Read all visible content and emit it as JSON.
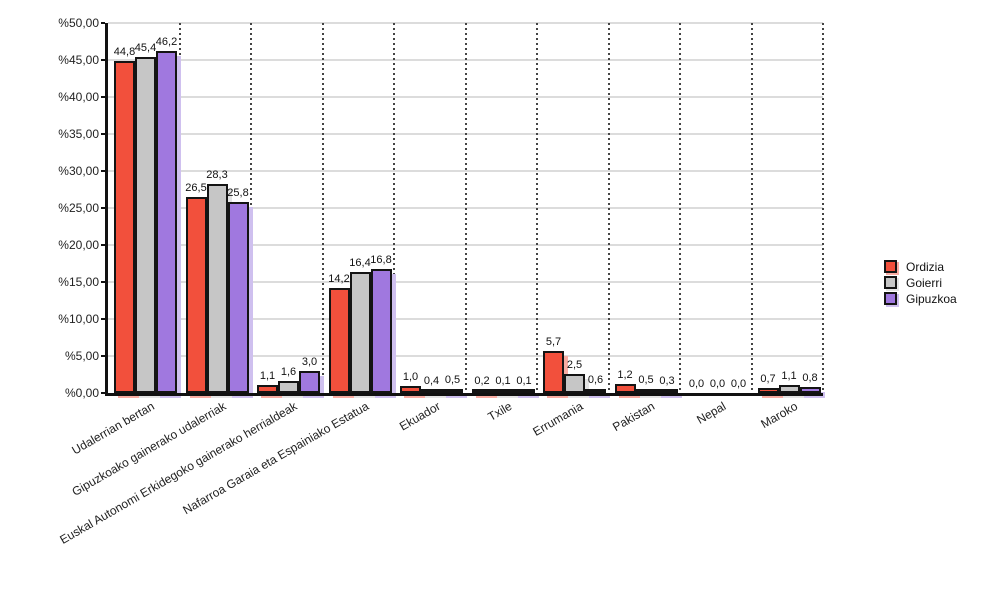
{
  "chart_data": {
    "type": "bar",
    "title": "",
    "xlabel": "",
    "ylabel": "",
    "categories": [
      "Udalerrian bertan",
      "Gipuzkoako gainerako udalerriak",
      "Euskal Autonomi Erkidegoko gainerako herrialdeak",
      "Nafarroa Garaia eta Espainiako Estatua",
      "Ekuador",
      "Txile",
      "Errumania",
      "Pakistan",
      "Nepal",
      "Maroko"
    ],
    "series": [
      {
        "name": "Ordizia",
        "color": "#F2503C",
        "shadow_color": "#F9ACA2",
        "values": [
          44.8,
          26.5,
          1.1,
          14.2,
          1.0,
          0.2,
          5.7,
          1.2,
          0.0,
          0.7
        ],
        "labels": [
          "44,8",
          "26,5",
          "1,1",
          "14,2",
          "1,0",
          "0,2",
          "5,7",
          "1,2",
          "0,0",
          "0,7"
        ]
      },
      {
        "name": "Goierri",
        "color": "#C6C6C6",
        "shadow_color": "#E4E4E4",
        "values": [
          45.4,
          28.3,
          1.6,
          16.4,
          0.4,
          0.1,
          2.5,
          0.5,
          0.0,
          1.1
        ],
        "labels": [
          "45,4",
          "28,3",
          "1,6",
          "16,4",
          "0,4",
          "0,1",
          "2,5",
          "0,5",
          "0,0",
          "1,1"
        ]
      },
      {
        "name": "Gipuzkoa",
        "color": "#A078DF",
        "shadow_color": "#CFC0EF",
        "values": [
          46.2,
          25.8,
          3.0,
          16.8,
          0.5,
          0.1,
          0.6,
          0.3,
          0.0,
          0.8
        ],
        "labels": [
          "46,2",
          "25,8",
          "3,0",
          "16,8",
          "0,5",
          "0,1",
          "0,6",
          "0,3",
          "0,0",
          "0,8"
        ]
      }
    ],
    "ylim": [
      0,
      50
    ],
    "yticks": {
      "values": [
        0,
        5,
        10,
        15,
        20,
        25,
        30,
        35,
        40,
        45,
        50
      ],
      "labels": [
        "%0,00",
        "%5,00",
        "%10,00",
        "%15,00",
        "%20,00",
        "%25,00",
        "%30,00",
        "%35,00",
        "%40,00",
        "%45,00",
        "%50,00"
      ]
    },
    "grid": {
      "horizontal": true,
      "vertical_dotted": true
    },
    "legend_position": "right"
  },
  "colors": {
    "axis": "#111111",
    "gridline": "#dcdcdc",
    "vertical_gridline_dots": "#444444",
    "bar_border": "#141414",
    "text": "#222222",
    "background": "#ffffff"
  }
}
